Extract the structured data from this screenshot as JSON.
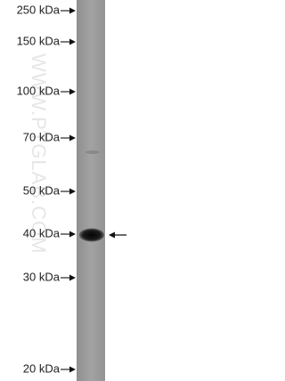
{
  "markers": [
    "250 kDa",
    "150 kDa",
    "100 kDa",
    "70 kDa",
    "50 kDa",
    "40 kDa",
    "30 kDa",
    "20 kDa"
  ],
  "watermark": "WWW.PTGLAB.COM"
}
